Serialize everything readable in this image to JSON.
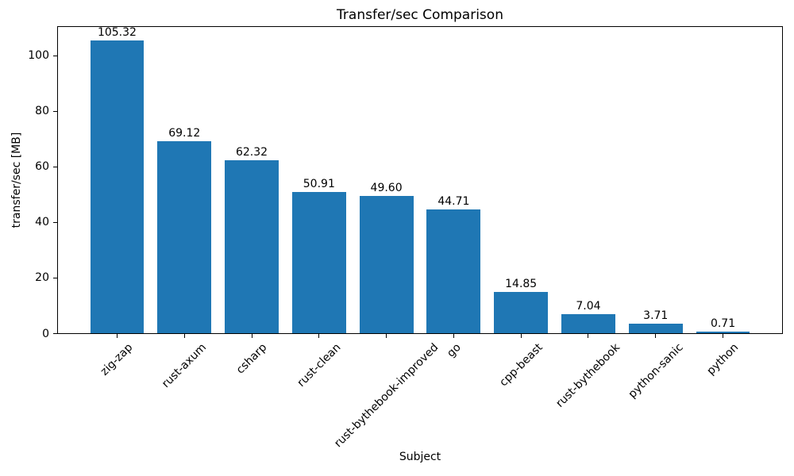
{
  "chart_data": {
    "type": "bar",
    "title": "Transfer/sec Comparison",
    "xlabel": "Subject",
    "ylabel": "transfer/sec [MB]",
    "categories": [
      "zig-zap",
      "rust-axum",
      "csharp",
      "rust-clean",
      "rust-bythebook-improved",
      "go",
      "cpp-beast",
      "rust-bythebook",
      "python-sanic",
      "python"
    ],
    "values": [
      105.32,
      69.12,
      62.32,
      50.91,
      49.6,
      44.71,
      14.85,
      7.04,
      3.71,
      0.71
    ],
    "bar_labels": [
      "105.32",
      "69.12",
      "62.32",
      "50.91",
      "49.60",
      "44.71",
      "14.85",
      "7.04",
      "3.71",
      "0.71"
    ],
    "yticks": [
      0,
      20,
      40,
      60,
      80,
      100
    ],
    "ylim": [
      0,
      110.6
    ],
    "bar_color": "#1f77b4",
    "axis_color": "#000000",
    "grid": false,
    "legend_position": "none",
    "xticklabel_rotation_deg": 45
  }
}
